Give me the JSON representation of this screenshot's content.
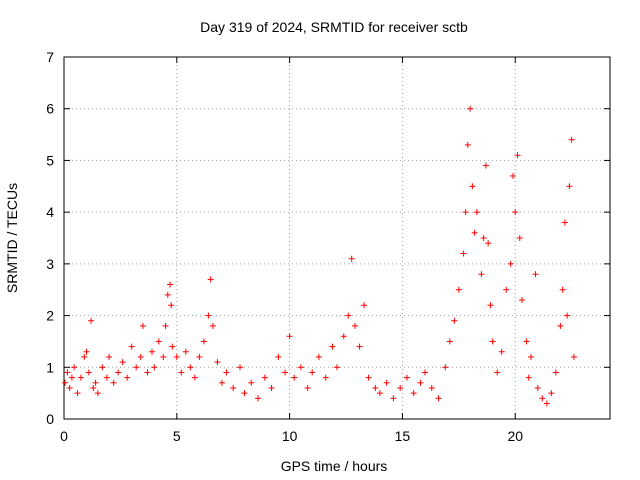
{
  "chart_data": {
    "type": "scatter",
    "title": "Day 319 of 2024, SRMTID for receiver sctb",
    "xlabel": "GPS time / hours",
    "ylabel": "SRMTID / TECUs",
    "xlim": [
      0,
      24.2
    ],
    "ylim": [
      0,
      7
    ],
    "xticks": [
      0,
      5,
      10,
      15,
      20
    ],
    "yticks": [
      0,
      1,
      2,
      3,
      4,
      5,
      6,
      7
    ],
    "grid": true,
    "marker": "plus",
    "series": [
      {
        "name": "sctb",
        "color": "#ff0000",
        "description": "dense scatter of SRMTID values",
        "x": [
          0.05,
          0.15,
          0.25,
          0.35,
          0.45,
          0.6,
          0.75,
          0.9,
          1.0,
          1.1,
          1.2,
          1.3,
          1.4,
          1.5,
          1.7,
          1.9,
          2.0,
          2.2,
          2.4,
          2.6,
          2.8,
          3.0,
          3.2,
          3.4,
          3.5,
          3.7,
          3.9,
          4.0,
          4.2,
          4.4,
          4.5,
          4.6,
          4.7,
          4.75,
          4.8,
          5.0,
          5.2,
          5.4,
          5.6,
          5.8,
          6.0,
          6.2,
          6.4,
          6.5,
          6.6,
          6.8,
          7.0,
          7.2,
          7.5,
          7.8,
          8.0,
          8.3,
          8.6,
          8.9,
          9.2,
          9.5,
          9.8,
          10.0,
          10.2,
          10.5,
          10.8,
          11.0,
          11.3,
          11.6,
          11.9,
          12.1,
          12.4,
          12.6,
          12.75,
          12.9,
          13.1,
          13.3,
          13.5,
          13.8,
          14.0,
          14.3,
          14.6,
          14.9,
          15.2,
          15.5,
          15.8,
          16.0,
          16.3,
          16.6,
          16.9,
          17.1,
          17.3,
          17.5,
          17.7,
          17.8,
          17.9,
          18.0,
          18.1,
          18.2,
          18.3,
          18.5,
          18.6,
          18.7,
          18.8,
          18.9,
          19.0,
          19.2,
          19.4,
          19.6,
          19.8,
          19.9,
          20.0,
          20.1,
          20.2,
          20.3,
          20.5,
          20.6,
          20.7,
          20.9,
          21.0,
          21.2,
          21.4,
          21.6,
          21.8,
          22.0,
          22.1,
          22.2,
          22.3,
          22.4,
          22.5,
          22.6
        ],
        "y": [
          0.7,
          0.9,
          0.6,
          0.8,
          1.0,
          0.5,
          0.8,
          1.2,
          1.3,
          0.9,
          1.9,
          0.6,
          0.7,
          0.5,
          1.0,
          0.8,
          1.2,
          0.7,
          0.9,
          1.1,
          0.8,
          1.4,
          1.0,
          1.2,
          1.8,
          0.9,
          1.3,
          1.0,
          1.5,
          1.2,
          1.8,
          2.4,
          2.6,
          2.2,
          1.4,
          1.2,
          0.9,
          1.3,
          1.0,
          0.8,
          1.2,
          1.5,
          2.0,
          2.7,
          1.8,
          1.1,
          0.7,
          0.9,
          0.6,
          1.0,
          0.5,
          0.7,
          0.4,
          0.8,
          0.6,
          1.2,
          0.9,
          1.6,
          0.8,
          1.0,
          0.6,
          0.9,
          1.2,
          0.8,
          1.4,
          1.0,
          1.6,
          2.0,
          3.1,
          1.8,
          1.4,
          2.2,
          0.8,
          0.6,
          0.5,
          0.7,
          0.4,
          0.6,
          0.8,
          0.5,
          0.7,
          0.9,
          0.6,
          0.4,
          1.0,
          1.5,
          1.9,
          2.5,
          3.2,
          4.0,
          5.3,
          6.0,
          4.5,
          3.6,
          4.0,
          2.8,
          3.5,
          4.9,
          3.4,
          2.2,
          1.5,
          0.9,
          1.3,
          2.5,
          3.0,
          4.7,
          4.0,
          5.1,
          3.5,
          2.3,
          1.5,
          0.8,
          1.2,
          2.8,
          0.6,
          0.4,
          0.3,
          0.5,
          0.9,
          1.8,
          2.5,
          3.8,
          2.0,
          4.5,
          5.4,
          1.2
        ]
      }
    ]
  }
}
